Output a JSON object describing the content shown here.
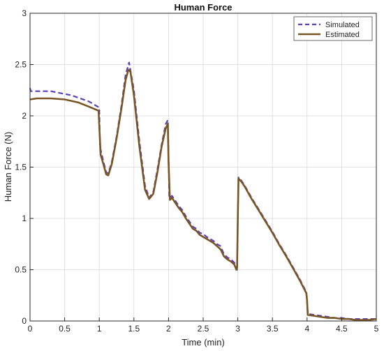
{
  "chart_data": {
    "type": "line",
    "title": "Human Force",
    "xlabel": "Time (min)",
    "ylabel": "Human Force (N)",
    "xlim": [
      0,
      5
    ],
    "ylim": [
      0,
      3
    ],
    "xticks": [
      "0",
      "0.5",
      "1",
      "1.5",
      "2",
      "2.5",
      "3",
      "3.5",
      "4",
      "4.5",
      "5"
    ],
    "yticks": [
      "0",
      "0.5",
      "1",
      "1.5",
      "2",
      "2.5",
      "3"
    ],
    "grid": true,
    "legend_position": "top-right",
    "series": [
      {
        "name": "Simulated",
        "style": "dashed",
        "color": "#5a3fb8",
        "points": [
          [
            0,
            2.27
          ],
          [
            0.01,
            2.24
          ],
          [
            0.3,
            2.24
          ],
          [
            0.6,
            2.2
          ],
          [
            0.85,
            2.14
          ],
          [
            1.0,
            2.08
          ],
          [
            1.01,
            1.7
          ],
          [
            1.05,
            1.58
          ],
          [
            1.1,
            1.45
          ],
          [
            1.13,
            1.44
          ],
          [
            1.18,
            1.55
          ],
          [
            1.25,
            1.8
          ],
          [
            1.32,
            2.1
          ],
          [
            1.38,
            2.4
          ],
          [
            1.43,
            2.52
          ],
          [
            1.5,
            2.25
          ],
          [
            1.58,
            1.75
          ],
          [
            1.66,
            1.32
          ],
          [
            1.72,
            1.2
          ],
          [
            1.78,
            1.26
          ],
          [
            1.84,
            1.48
          ],
          [
            1.9,
            1.72
          ],
          [
            1.96,
            1.92
          ],
          [
            1.99,
            1.96
          ],
          [
            2.0,
            1.62
          ],
          [
            2.01,
            1.2
          ],
          [
            2.05,
            1.22
          ],
          [
            2.1,
            1.17
          ],
          [
            2.15,
            1.12
          ],
          [
            2.2,
            1.08
          ],
          [
            2.25,
            1.02
          ],
          [
            2.3,
            0.97
          ],
          [
            2.35,
            0.92
          ],
          [
            2.4,
            0.9
          ],
          [
            2.45,
            0.86
          ],
          [
            2.5,
            0.85
          ],
          [
            2.55,
            0.82
          ],
          [
            2.6,
            0.8
          ],
          [
            2.65,
            0.78
          ],
          [
            2.7,
            0.75
          ],
          [
            2.75,
            0.73
          ],
          [
            2.8,
            0.65
          ],
          [
            2.85,
            0.62
          ],
          [
            2.9,
            0.6
          ],
          [
            2.95,
            0.57
          ],
          [
            2.98,
            0.5
          ],
          [
            2.99,
            0.5
          ],
          [
            3.0,
            1.0
          ],
          [
            3.01,
            1.4
          ],
          [
            3.05,
            1.37
          ],
          [
            3.1,
            1.32
          ],
          [
            3.2,
            1.2
          ],
          [
            3.3,
            1.09
          ],
          [
            3.4,
            0.98
          ],
          [
            3.5,
            0.87
          ],
          [
            3.6,
            0.75
          ],
          [
            3.7,
            0.64
          ],
          [
            3.8,
            0.52
          ],
          [
            3.9,
            0.4
          ],
          [
            3.99,
            0.28
          ],
          [
            4.0,
            0.2
          ],
          [
            4.01,
            0.07
          ],
          [
            4.1,
            0.06
          ],
          [
            4.2,
            0.05
          ],
          [
            4.3,
            0.04
          ],
          [
            4.4,
            0.03
          ],
          [
            4.5,
            0.03
          ],
          [
            4.6,
            0.02
          ],
          [
            4.7,
            0.02
          ],
          [
            4.8,
            0.02
          ],
          [
            4.9,
            0.02
          ],
          [
            4.98,
            0.02
          ],
          [
            5.0,
            0.05
          ]
        ]
      },
      {
        "name": "Estimated",
        "style": "solid",
        "color": "#7a5524",
        "points": [
          [
            0,
            2.16
          ],
          [
            0.1,
            2.17
          ],
          [
            0.3,
            2.17
          ],
          [
            0.5,
            2.16
          ],
          [
            0.7,
            2.13
          ],
          [
            0.85,
            2.09
          ],
          [
            0.99,
            2.05
          ],
          [
            1.0,
            1.9
          ],
          [
            1.02,
            1.62
          ],
          [
            1.05,
            1.55
          ],
          [
            1.1,
            1.43
          ],
          [
            1.13,
            1.42
          ],
          [
            1.18,
            1.53
          ],
          [
            1.25,
            1.78
          ],
          [
            1.32,
            2.07
          ],
          [
            1.38,
            2.35
          ],
          [
            1.42,
            2.45
          ],
          [
            1.45,
            2.43
          ],
          [
            1.5,
            2.2
          ],
          [
            1.58,
            1.7
          ],
          [
            1.66,
            1.28
          ],
          [
            1.72,
            1.19
          ],
          [
            1.78,
            1.24
          ],
          [
            1.84,
            1.45
          ],
          [
            1.9,
            1.7
          ],
          [
            1.96,
            1.88
          ],
          [
            1.99,
            1.92
          ],
          [
            2.0,
            1.55
          ],
          [
            2.02,
            1.18
          ],
          [
            2.05,
            1.2
          ],
          [
            2.1,
            1.15
          ],
          [
            2.15,
            1.1
          ],
          [
            2.2,
            1.06
          ],
          [
            2.25,
            1.0
          ],
          [
            2.3,
            0.95
          ],
          [
            2.35,
            0.9
          ],
          [
            2.4,
            0.88
          ],
          [
            2.45,
            0.84
          ],
          [
            2.5,
            0.82
          ],
          [
            2.55,
            0.8
          ],
          [
            2.6,
            0.78
          ],
          [
            2.65,
            0.76
          ],
          [
            2.7,
            0.73
          ],
          [
            2.75,
            0.7
          ],
          [
            2.8,
            0.63
          ],
          [
            2.85,
            0.6
          ],
          [
            2.9,
            0.58
          ],
          [
            2.95,
            0.55
          ],
          [
            2.98,
            0.5
          ],
          [
            2.99,
            0.52
          ],
          [
            3.0,
            1.0
          ],
          [
            3.01,
            1.39
          ],
          [
            3.05,
            1.36
          ],
          [
            3.1,
            1.31
          ],
          [
            3.2,
            1.19
          ],
          [
            3.3,
            1.08
          ],
          [
            3.4,
            0.97
          ],
          [
            3.5,
            0.86
          ],
          [
            3.6,
            0.74
          ],
          [
            3.7,
            0.63
          ],
          [
            3.8,
            0.51
          ],
          [
            3.9,
            0.39
          ],
          [
            3.99,
            0.27
          ],
          [
            4.0,
            0.2
          ],
          [
            4.01,
            0.06
          ],
          [
            4.1,
            0.05
          ],
          [
            4.2,
            0.04
          ],
          [
            4.3,
            0.03
          ],
          [
            4.4,
            0.03
          ],
          [
            4.5,
            0.02
          ],
          [
            4.6,
            0.02
          ],
          [
            4.7,
            0.01
          ],
          [
            4.8,
            0.01
          ],
          [
            4.9,
            0.01
          ],
          [
            5.0,
            0.02
          ]
        ]
      }
    ]
  }
}
